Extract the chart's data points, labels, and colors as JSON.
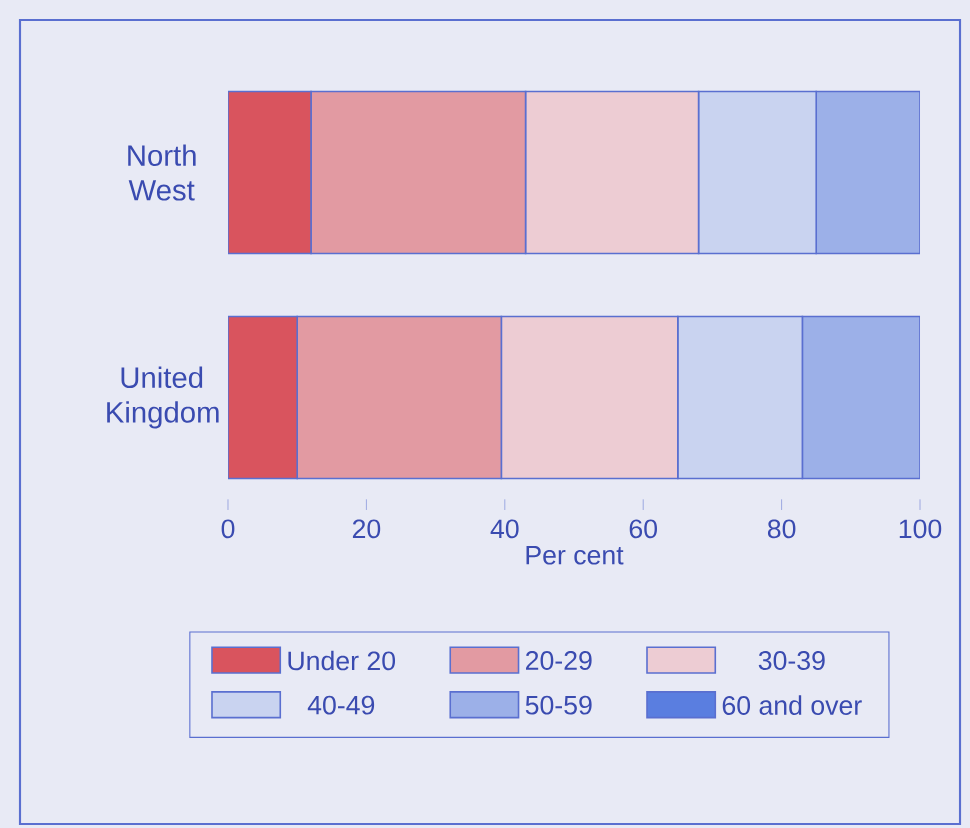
{
  "chart_data": {
    "type": "bar",
    "orientation": "horizontal",
    "stacked": true,
    "xlabel": "Per cent",
    "categories": [
      "North West",
      "United Kingdom"
    ],
    "series": [
      {
        "name": "Under 20",
        "color": "#d9545e",
        "values": [
          12,
          10
        ]
      },
      {
        "name": "20-29",
        "color": "#e29aa2",
        "values": [
          31,
          29.5
        ]
      },
      {
        "name": "30-39",
        "color": "#edccd3",
        "values": [
          25,
          25.5
        ]
      },
      {
        "name": "40-49",
        "color": "#c9d3f0",
        "values": [
          17,
          18
        ]
      },
      {
        "name": "50-59",
        "color": "#9cb0e8",
        "values": [
          15,
          17
        ]
      },
      {
        "name": "60 and over",
        "color": "#5a7ee0",
        "values": [
          null,
          null
        ]
      }
    ],
    "xlim": [
      0,
      100
    ],
    "xticks": [
      0,
      20,
      40,
      60,
      80,
      100
    ],
    "grid": false,
    "legend": "bottom"
  }
}
